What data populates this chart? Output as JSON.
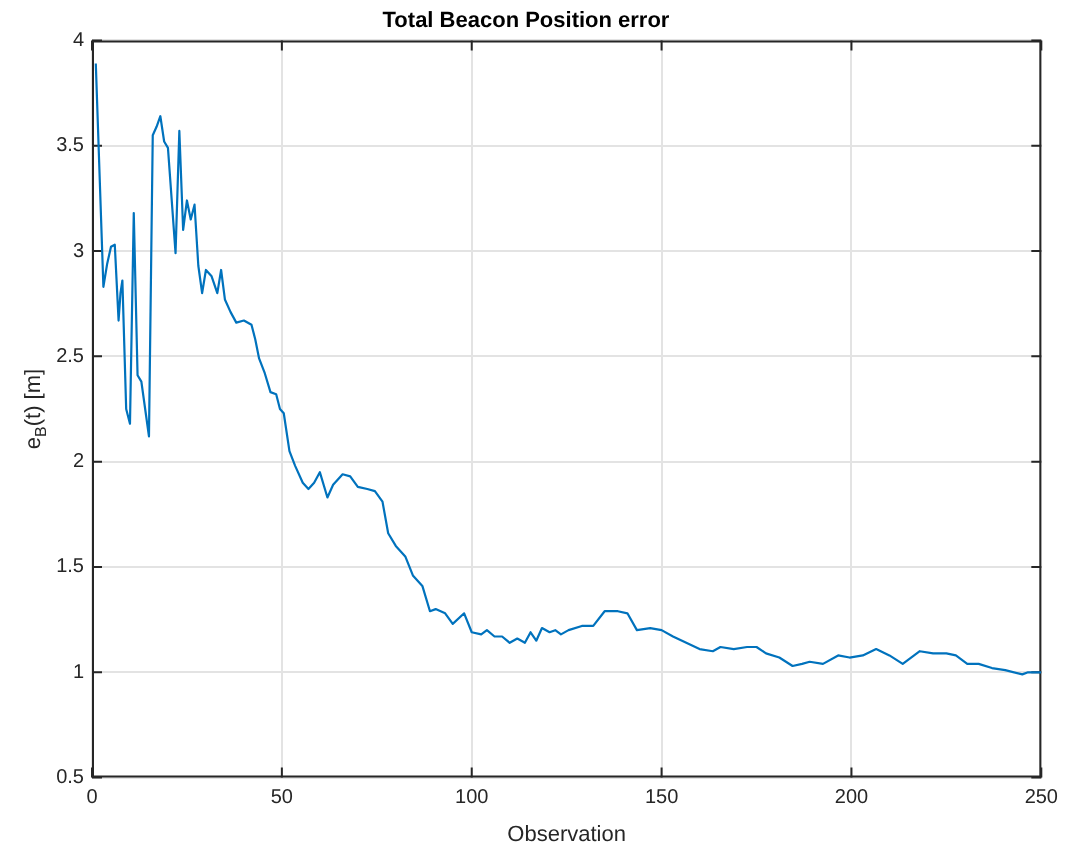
{
  "chart_data": {
    "type": "line",
    "title": "Total Beacon Position error",
    "xlabel": "Observation",
    "ylabel": "e$_{B}$(t) [m]",
    "x": [
      1,
      3,
      4,
      5,
      6,
      7,
      7.5,
      8,
      9,
      10,
      11,
      12,
      13,
      14,
      15,
      16,
      17,
      18,
      19,
      20,
      22,
      23,
      24,
      25,
      26,
      27,
      28,
      29,
      30,
      31.5,
      33,
      34,
      35,
      36.5,
      38,
      40,
      42,
      43,
      44,
      45.5,
      47,
      48.5,
      49.5,
      50.5,
      52,
      53.5,
      55.5,
      57,
      58.5,
      60,
      62,
      63.5,
      66,
      68,
      70,
      72.5,
      74.5,
      76.5,
      78,
      80,
      82.5,
      84.5,
      87,
      89,
      90.5,
      93,
      95,
      98,
      100,
      102.5,
      104,
      106,
      108,
      110,
      112,
      114,
      115.5,
      117,
      118.5,
      120.5,
      122,
      123.5,
      125.5,
      129,
      132,
      135,
      138.5,
      141,
      143.5,
      147,
      150,
      153,
      156.5,
      160,
      163.5,
      165.5,
      169,
      172.5,
      175,
      177.5,
      181,
      184.5,
      187,
      189,
      192.5,
      196.5,
      199.5,
      203,
      206.5,
      210,
      213.5,
      218,
      221.5,
      225,
      227.5,
      230.5,
      233.5,
      237,
      240.5,
      245,
      246.5,
      248.5,
      250
    ],
    "series": [
      {
        "color": "#0072bd",
        "values": [
          3.89,
          2.83,
          2.94,
          3.02,
          3.03,
          2.67,
          2.8,
          2.86,
          2.25,
          2.18,
          3.18,
          2.41,
          2.38,
          2.25,
          2.12,
          3.55,
          3.59,
          3.64,
          3.52,
          3.49,
          2.99,
          3.57,
          3.1,
          3.24,
          3.15,
          3.22,
          2.93,
          2.8,
          2.91,
          2.88,
          2.8,
          2.91,
          2.77,
          2.71,
          2.66,
          2.67,
          2.65,
          2.58,
          2.49,
          2.42,
          2.33,
          2.32,
          2.25,
          2.23,
          2.05,
          1.98,
          1.9,
          1.87,
          1.9,
          1.95,
          1.83,
          1.89,
          1.94,
          1.93,
          1.88,
          1.87,
          1.86,
          1.81,
          1.66,
          1.6,
          1.55,
          1.46,
          1.41,
          1.29,
          1.3,
          1.28,
          1.23,
          1.28,
          1.19,
          1.18,
          1.2,
          1.17,
          1.17,
          1.14,
          1.16,
          1.14,
          1.19,
          1.15,
          1.21,
          1.19,
          1.2,
          1.18,
          1.2,
          1.22,
          1.22,
          1.29,
          1.29,
          1.28,
          1.2,
          1.21,
          1.2,
          1.17,
          1.14,
          1.11,
          1.1,
          1.12,
          1.11,
          1.12,
          1.12,
          1.09,
          1.07,
          1.03,
          1.04,
          1.05,
          1.04,
          1.08,
          1.07,
          1.08,
          1.11,
          1.08,
          1.04,
          1.1,
          1.09,
          1.09,
          1.08,
          1.04,
          1.04,
          1.02,
          1.01,
          0.99,
          1,
          1,
          1
        ]
      }
    ],
    "xlim": [
      0,
      250
    ],
    "xticks": [
      0,
      50,
      100,
      150,
      200,
      250
    ],
    "ylim": [
      0.5,
      4
    ],
    "yticks": [
      0.5,
      1,
      1.5,
      2,
      2.5,
      3,
      3.5,
      4
    ],
    "grid": true,
    "legend": false,
    "marker": "none",
    "line_style": "solid"
  }
}
